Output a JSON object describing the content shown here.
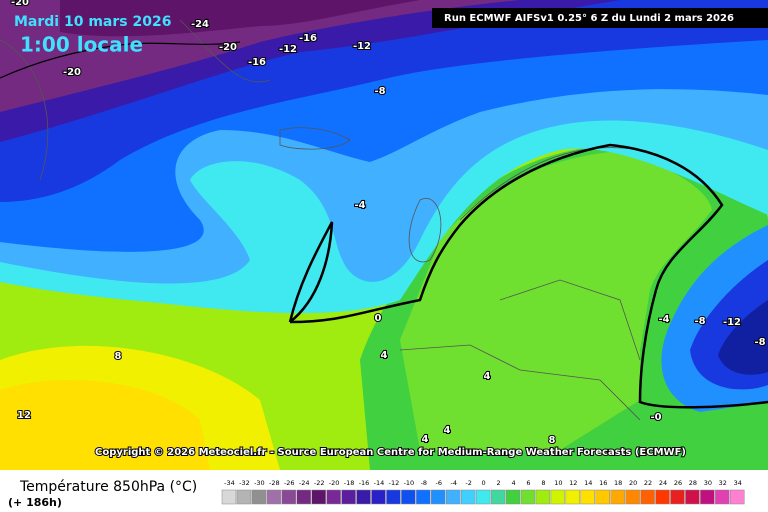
{
  "header": {
    "date": "Mardi 10 mars 2026",
    "time": "1:00 locale",
    "run": "Run ECMWF AIFSv1 0.25° 6 Z du Lundi 2 mars 2026"
  },
  "copyright": "Copyright © 2026 Meteociel.fr - Source European Centre for Medium-Range Weather Forecasts (ECMWF)",
  "footer": {
    "title": "Température 850hPa (°C)",
    "lead": "(+ 186h)"
  },
  "contour_labels": [
    "-20",
    "-24",
    "-20",
    "-16",
    "-12",
    "-16",
    "-12",
    "-20",
    "-8",
    "-4",
    "0",
    "4",
    "4",
    "8",
    "12",
    "4",
    "4",
    "8",
    "-4",
    "-8",
    "-12",
    "-8",
    "-0"
  ],
  "legend": {
    "labels": [
      -34,
      -32,
      -30,
      -28,
      -26,
      -24,
      -22,
      -20,
      -18,
      -16,
      -14,
      -12,
      -10,
      -8,
      -6,
      -4,
      -2,
      0,
      2,
      4,
      6,
      8,
      10,
      12,
      14,
      16,
      18,
      20,
      22,
      24,
      26,
      28,
      30,
      32,
      34
    ],
    "colors": [
      "#d8d8d8",
      "#b4b4b4",
      "#909090",
      "#a070a8",
      "#8a4896",
      "#742a80",
      "#5e1468",
      "#7a2896",
      "#5a1e9e",
      "#3a1aa8",
      "#2a20c8",
      "#1838e0",
      "#1050f0",
      "#1070ff",
      "#2090ff",
      "#40b0ff",
      "#40d0ff",
      "#40e8f0",
      "#40d8a0",
      "#40d040",
      "#70e030",
      "#a0ec10",
      "#d0f400",
      "#f0f000",
      "#ffe000",
      "#ffc800",
      "#ffa800",
      "#ff8800",
      "#ff6000",
      "#ff3800",
      "#e82020",
      "#d01048",
      "#c01080",
      "#e040b0",
      "#ff80d0"
    ]
  }
}
